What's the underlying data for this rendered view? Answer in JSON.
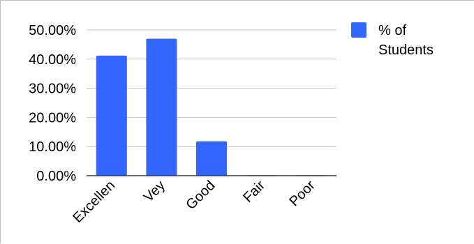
{
  "chart_data": {
    "type": "bar",
    "categories": [
      "Excellen",
      "Vey",
      "Good",
      "Fair",
      "Poor"
    ],
    "series": [
      {
        "name": "% of Students",
        "values": [
          41.2,
          47.0,
          11.8,
          0.0,
          0.0
        ]
      }
    ],
    "title": "",
    "xlabel": "",
    "ylabel": "",
    "ylim": [
      0,
      50
    ],
    "yticks": [
      "0.00%",
      "10.00%",
      "20.00%",
      "30.00%",
      "40.00%",
      "50.00%"
    ],
    "grid": true,
    "legend": {
      "position": "right",
      "lines": [
        "% of",
        "Students"
      ]
    },
    "colors": {
      "bar": "#3366ff",
      "grid": "#c8c8c8",
      "axis": "#333333"
    }
  }
}
